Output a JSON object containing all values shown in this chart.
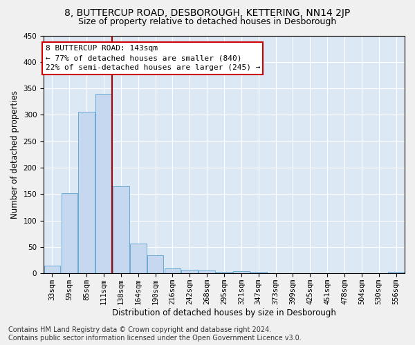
{
  "title_line1": "8, BUTTERCUP ROAD, DESBOROUGH, KETTERING, NN14 2JP",
  "title_line2": "Size of property relative to detached houses in Desborough",
  "xlabel": "Distribution of detached houses by size in Desborough",
  "ylabel": "Number of detached properties",
  "footnote": "Contains HM Land Registry data © Crown copyright and database right 2024.\nContains public sector information licensed under the Open Government Licence v3.0.",
  "bar_color": "#c5d8f0",
  "bar_edge_color": "#6aaad4",
  "background_color": "#dde8f5",
  "fig_background": "#f0f0f0",
  "annotation_box_color": "#ffffff",
  "annotation_border_color": "#cc0000",
  "vline_color": "#aa0000",
  "grid_color": "#ffffff",
  "categories": [
    "33sqm",
    "59sqm",
    "85sqm",
    "111sqm",
    "138sqm",
    "164sqm",
    "190sqm",
    "216sqm",
    "242sqm",
    "268sqm",
    "295sqm",
    "321sqm",
    "347sqm",
    "373sqm",
    "399sqm",
    "425sqm",
    "451sqm",
    "478sqm",
    "504sqm",
    "530sqm",
    "556sqm"
  ],
  "values": [
    15,
    152,
    306,
    340,
    165,
    57,
    34,
    9,
    7,
    5,
    3,
    4,
    3,
    1,
    1,
    1,
    1,
    0,
    0,
    0,
    3
  ],
  "ylim": [
    0,
    450
  ],
  "yticks": [
    0,
    50,
    100,
    150,
    200,
    250,
    300,
    350,
    400,
    450
  ],
  "vline_position": 3.5,
  "annotation_text": "8 BUTTERCUP ROAD: 143sqm\n← 77% of detached houses are smaller (840)\n22% of semi-detached houses are larger (245) →",
  "title_fontsize": 10,
  "subtitle_fontsize": 9,
  "axis_label_fontsize": 8.5,
  "tick_fontsize": 7.5,
  "annotation_fontsize": 8,
  "footnote_fontsize": 7
}
